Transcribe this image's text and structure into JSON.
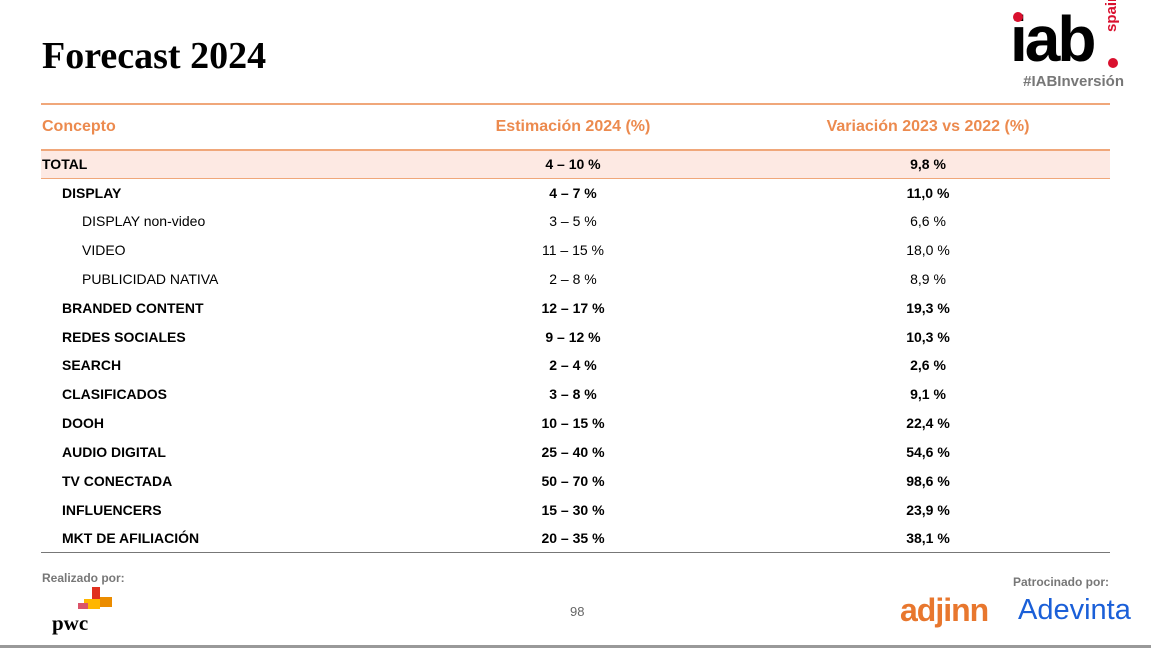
{
  "header": {
    "title": "Forecast 2024",
    "logo": {
      "brand": "iab",
      "region": "spain",
      "hashtag": "#IABInversión"
    }
  },
  "table": {
    "columns": [
      "Concepto",
      "Estimación 2024 (%)",
      "Variación 2023 vs 2022 (%)"
    ],
    "rows": [
      [
        "TOTAL",
        "4 – 10 %",
        "9,8 %"
      ],
      [
        "DISPLAY",
        "4 – 7 %",
        "11,0 %"
      ],
      [
        "DISPLAY non-video",
        "3 – 5 %",
        "6,6 %"
      ],
      [
        "VIDEO",
        "11 – 15 %",
        "18,0 %"
      ],
      [
        "PUBLICIDAD NATIVA",
        "2 – 8 %",
        "8,9 %"
      ],
      [
        "BRANDED CONTENT",
        "12 – 17 %",
        "19,3 %"
      ],
      [
        "REDES SOCIALES",
        "9 – 12 %",
        "10,3 %"
      ],
      [
        "SEARCH",
        "2 – 4 %",
        "2,6 %"
      ],
      [
        "CLASIFICADOS",
        "3 – 8 %",
        "9,1 %"
      ],
      [
        "DOOH",
        "10 – 15 %",
        "22,4 %"
      ],
      [
        "AUDIO DIGITAL",
        "25 – 40 %",
        "54,6 %"
      ],
      [
        "TV CONECTADA",
        "50 – 70 %",
        "98,6 %"
      ],
      [
        "INFLUENCERS",
        "15 – 30 %",
        "23,9 %"
      ],
      [
        "MKT DE AFILIACIÓN",
        "20 – 35 %",
        "38,1 %"
      ]
    ]
  },
  "footer": {
    "made_by_label": "Realizado por:",
    "made_by": "pwc",
    "page_number": "98",
    "sponsored_by_label": "Patrocinado por:",
    "sponsors": [
      "adjinn",
      "Adevinta"
    ]
  }
}
